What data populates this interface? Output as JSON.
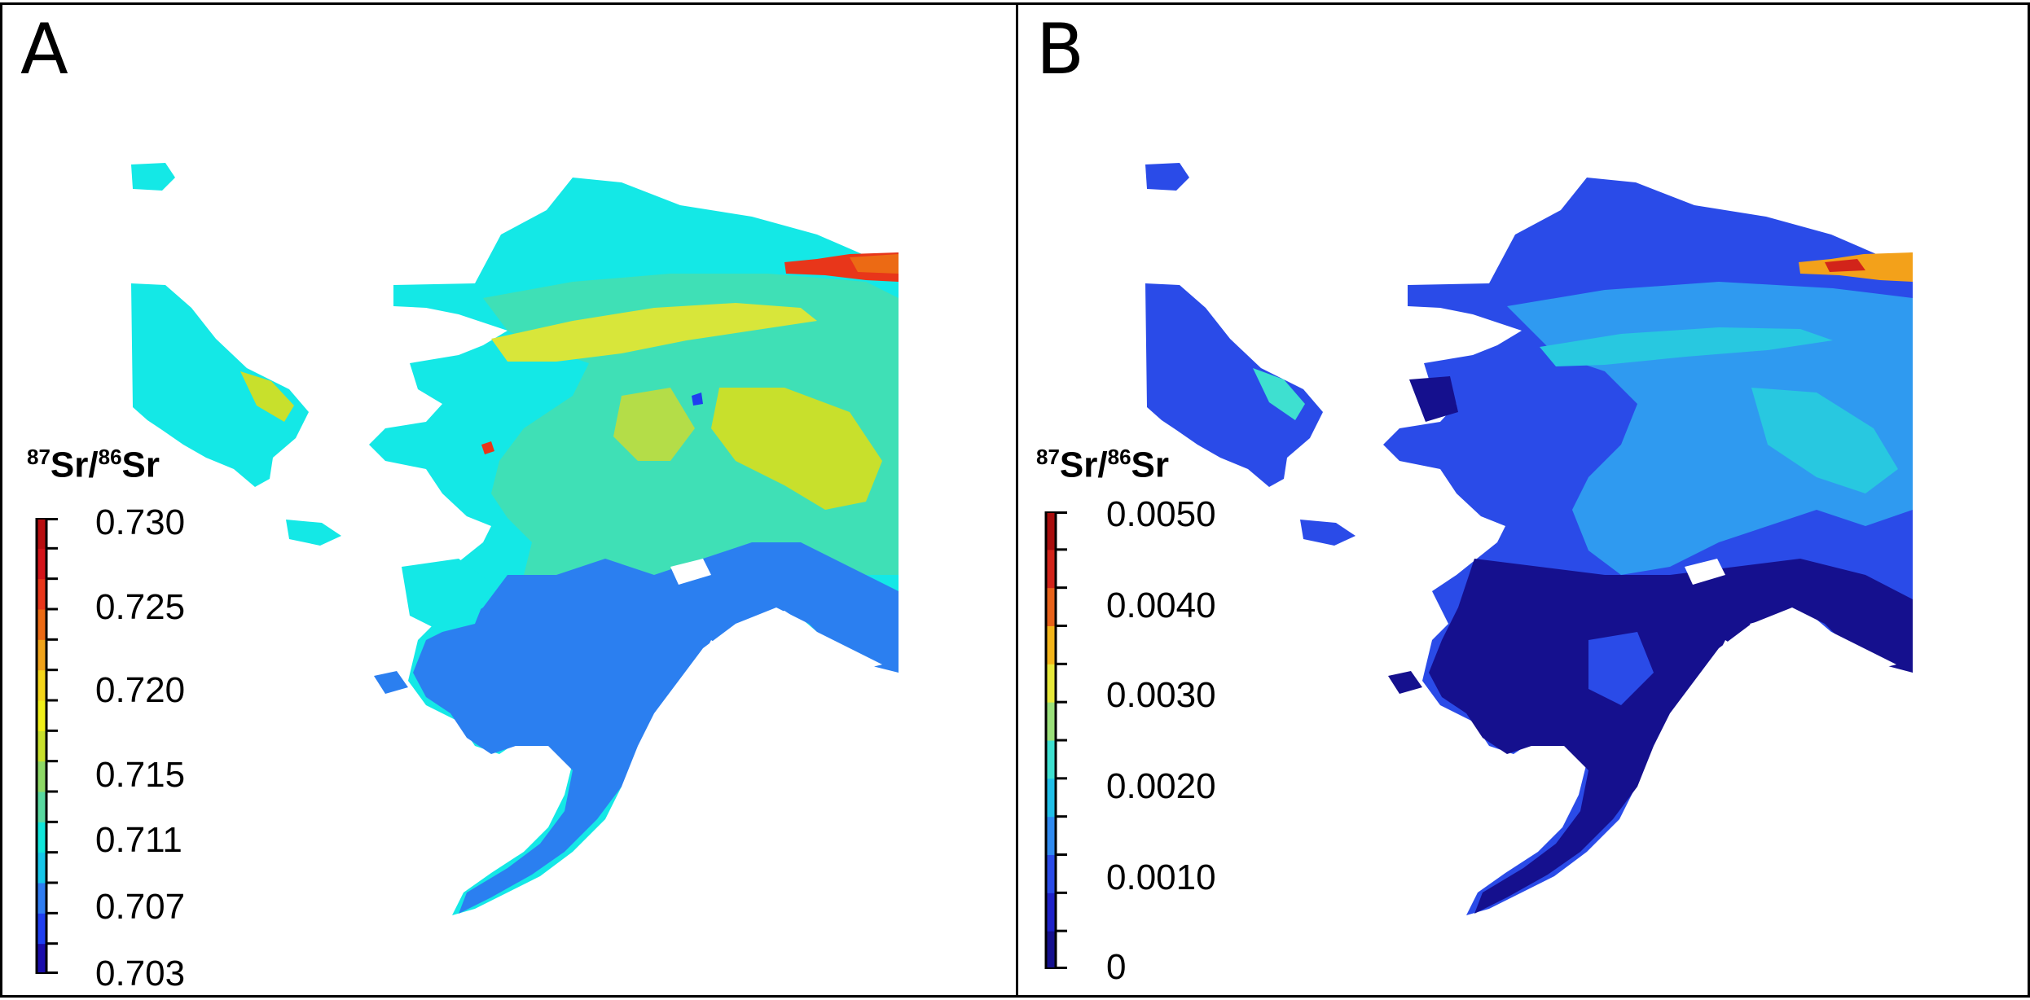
{
  "panels": [
    {
      "letter": "A",
      "legend": {
        "title_sup1": "87",
        "title_sr1": "Sr/",
        "title_sup2": "86",
        "title_sr2": "Sr",
        "colors": [
          "#1a0dab",
          "#1f3ff0",
          "#2f7df2",
          "#16c7ea",
          "#10e6da",
          "#59d9a0",
          "#8ed966",
          "#c8e02c",
          "#f0ef1a",
          "#f4d51a",
          "#f0a31a",
          "#ec6a14",
          "#e8361a",
          "#d4141a",
          "#b80e10"
        ],
        "tick_labels": [
          "0.730",
          "0.725",
          "0.720",
          "0.715",
          "0.711",
          "0.707",
          "0.703"
        ]
      }
    },
    {
      "letter": "B",
      "legend": {
        "title_sup1": "87",
        "title_sr1": "Sr/",
        "title_sup2": "86",
        "title_sr2": "Sr",
        "colors": [
          "#15108e",
          "#1e22c8",
          "#2a4be8",
          "#2f8af0",
          "#20bfe8",
          "#3ee0d0",
          "#9be07a",
          "#e6e83a",
          "#f3b51a",
          "#e8621a",
          "#d2241a",
          "#a80e0e"
        ],
        "tick_labels": [
          "0.0050",
          "0.0040",
          "0.0030",
          "0.0020",
          "0.0010",
          "0"
        ]
      }
    }
  ],
  "colors": {
    "map_a_north": "#14e8e6",
    "map_a_mid": "#3fe0b6",
    "map_a_yellow": "#d8e63a",
    "map_a_south": "#2b7ff0",
    "map_a_hot": "#e8361a",
    "map_b_main": "#2a4be8",
    "map_b_dark": "#15108e",
    "map_b_light": "#2f9af0",
    "map_b_cyan": "#28c8e0",
    "map_b_hot": "#f3a11a"
  }
}
